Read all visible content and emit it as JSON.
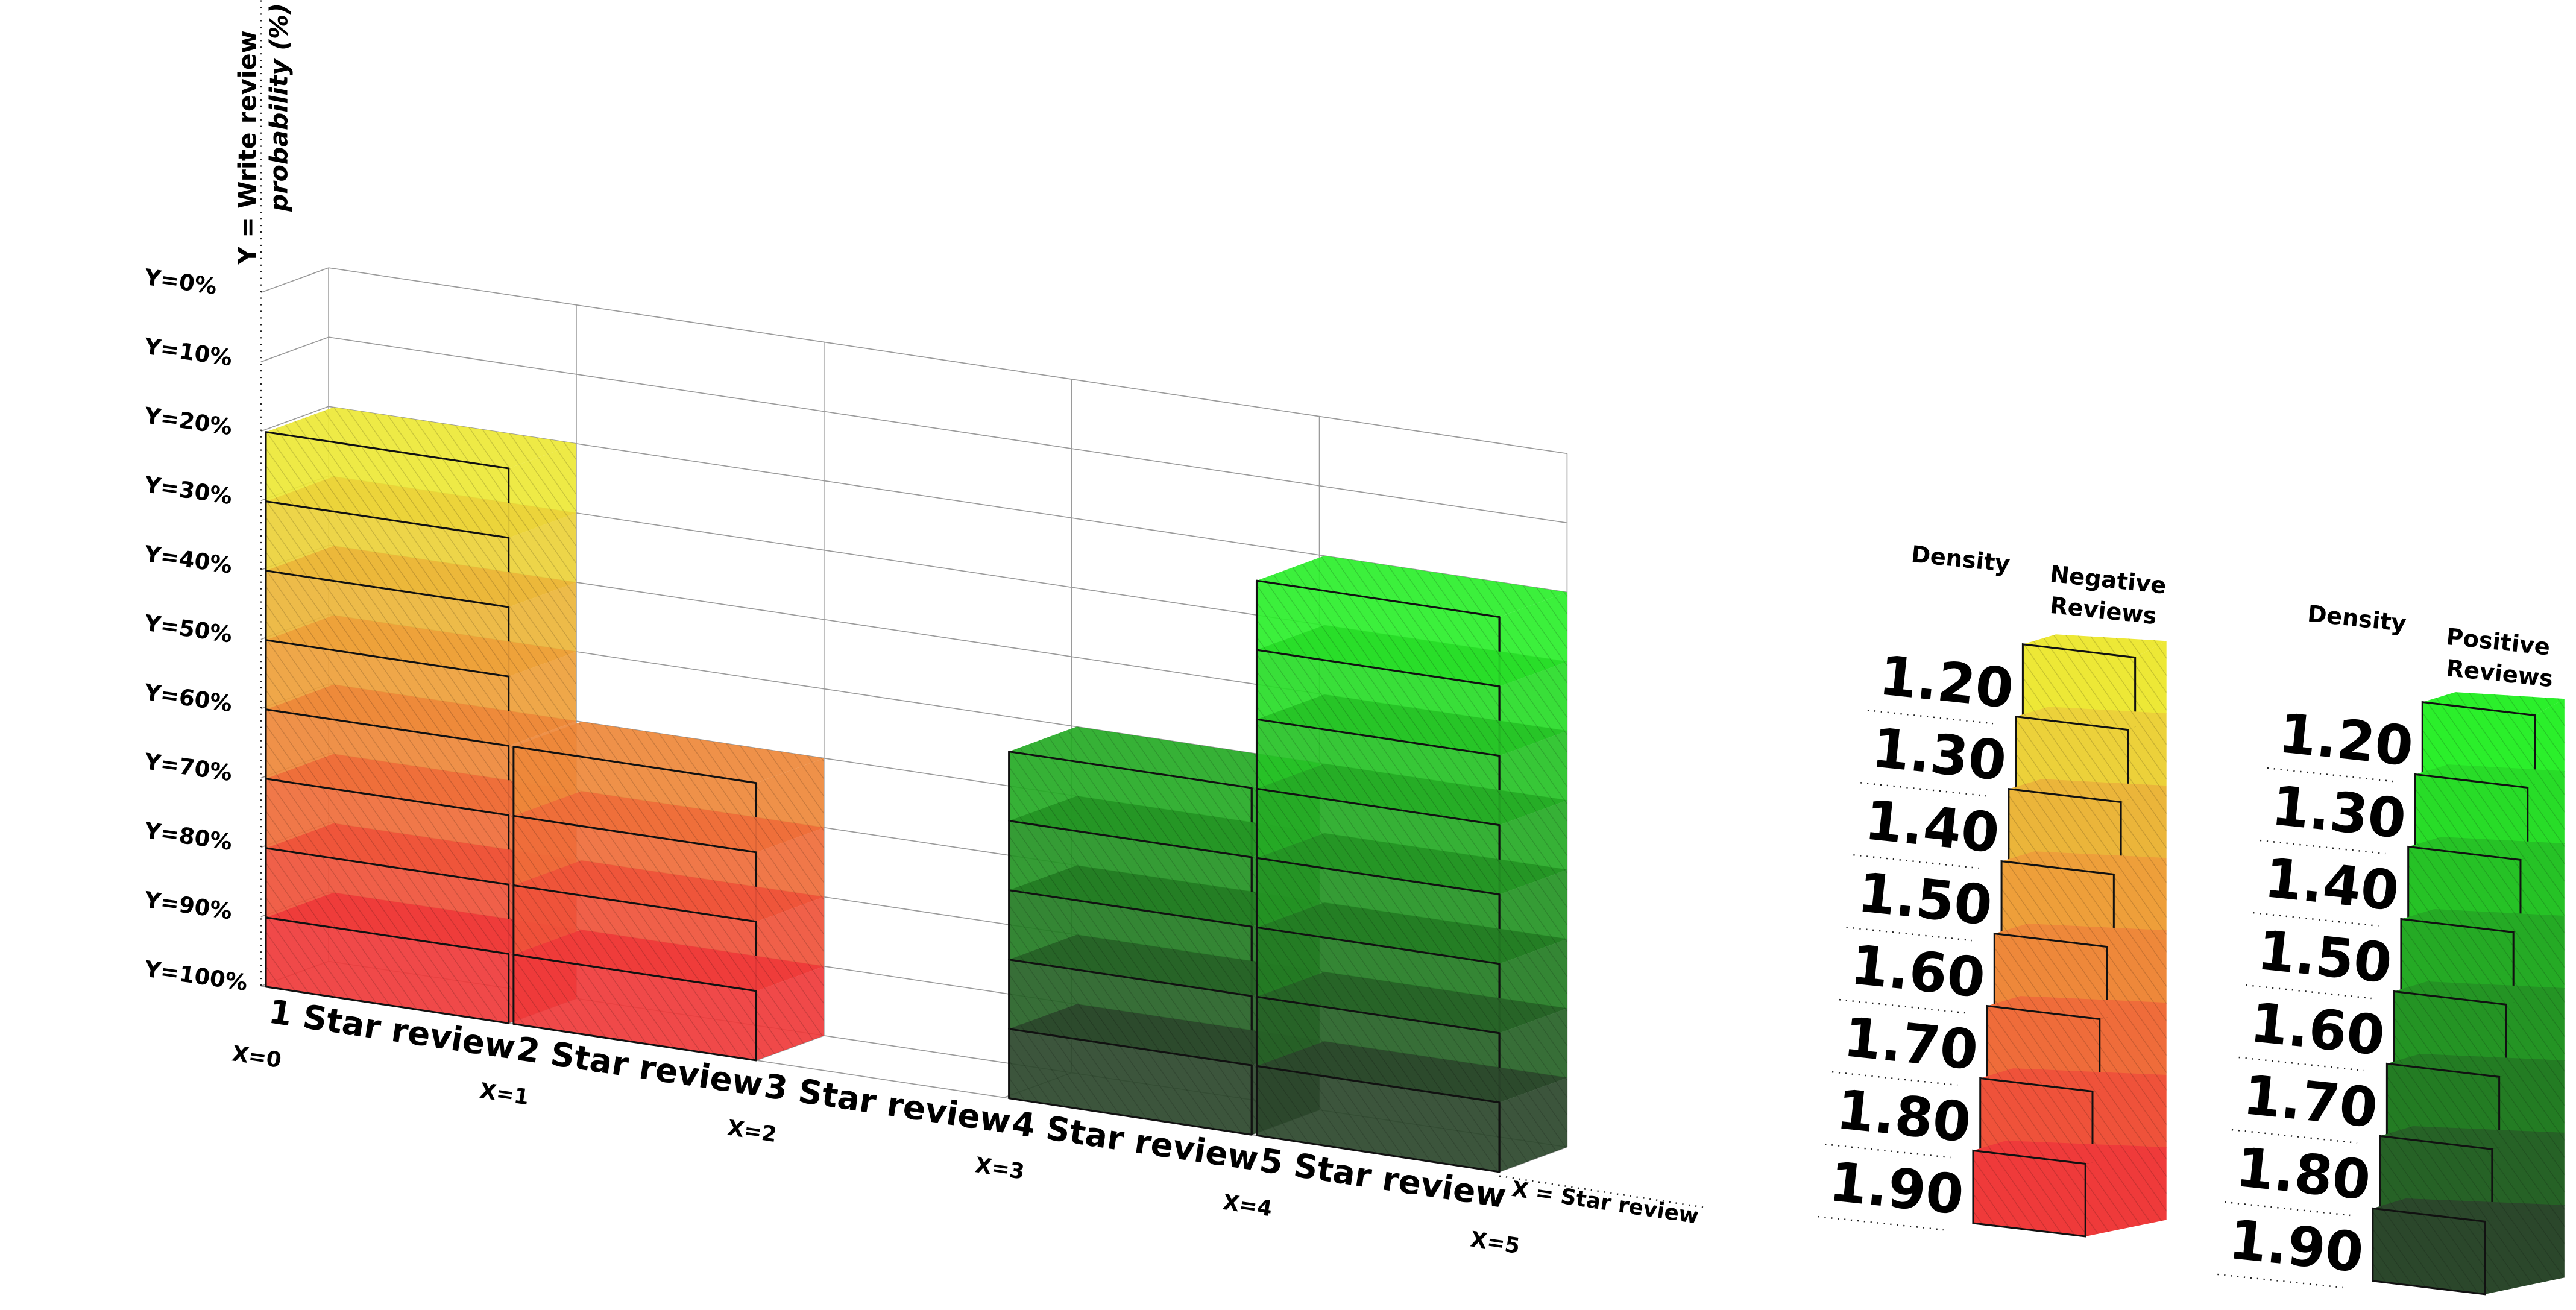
{
  "chart_data": {
    "type": "bar",
    "variant": "3d-stacked-blocks",
    "ylabel_line1": "Y = Write review",
    "ylabel_line2": "probability (%)",
    "xlabel": "X = Star review",
    "y_ticks": [
      "Y=0%",
      "Y=10%",
      "Y=20%",
      "Y=30%",
      "Y=40%",
      "Y=50%",
      "Y=60%",
      "Y=70%",
      "Y=80%",
      "Y=90%",
      "Y=100%"
    ],
    "y_axis_inverted": true,
    "ylim": [
      0,
      100
    ],
    "x_ticks": [
      "X=0",
      "X=1",
      "X=2",
      "X=3",
      "X=4",
      "X=5"
    ],
    "categories": [
      "1 Star review",
      "2 Star review",
      "3 Star review",
      "4 Star review",
      "5 Star review"
    ],
    "values": [
      80,
      40,
      0,
      50,
      80
    ],
    "series_kind": [
      "negative",
      "negative",
      "none",
      "positive",
      "positive"
    ],
    "block_step": 10,
    "grid": true
  },
  "legends": [
    {
      "density_label": "Density",
      "title_line1": "Negative",
      "title_line2": "Reviews",
      "entries": [
        {
          "value": "1.20",
          "color": "#ede836"
        },
        {
          "value": "1.30",
          "color": "#ecd13a"
        },
        {
          "value": "1.40",
          "color": "#ebb53a"
        },
        {
          "value": "1.50",
          "color": "#ee9f3a"
        },
        {
          "value": "1.60",
          "color": "#ee883a"
        },
        {
          "value": "1.70",
          "color": "#ef6c3a"
        },
        {
          "value": "1.80",
          "color": "#ef523a"
        },
        {
          "value": "1.90",
          "color": "#ef3a3a"
        }
      ]
    },
    {
      "density_label": "Density",
      "title_line1": "Positive",
      "title_line2": "Reviews",
      "entries": [
        {
          "value": "1.20",
          "color": "#2bef2b"
        },
        {
          "value": "1.30",
          "color": "#28dc28"
        },
        {
          "value": "1.40",
          "color": "#26c226"
        },
        {
          "value": "1.50",
          "color": "#25aa25"
        },
        {
          "value": "1.60",
          "color": "#249424"
        },
        {
          "value": "1.70",
          "color": "#237c23"
        },
        {
          "value": "1.80",
          "color": "#266226"
        },
        {
          "value": "1.90",
          "color": "#2b472b"
        }
      ]
    }
  ]
}
